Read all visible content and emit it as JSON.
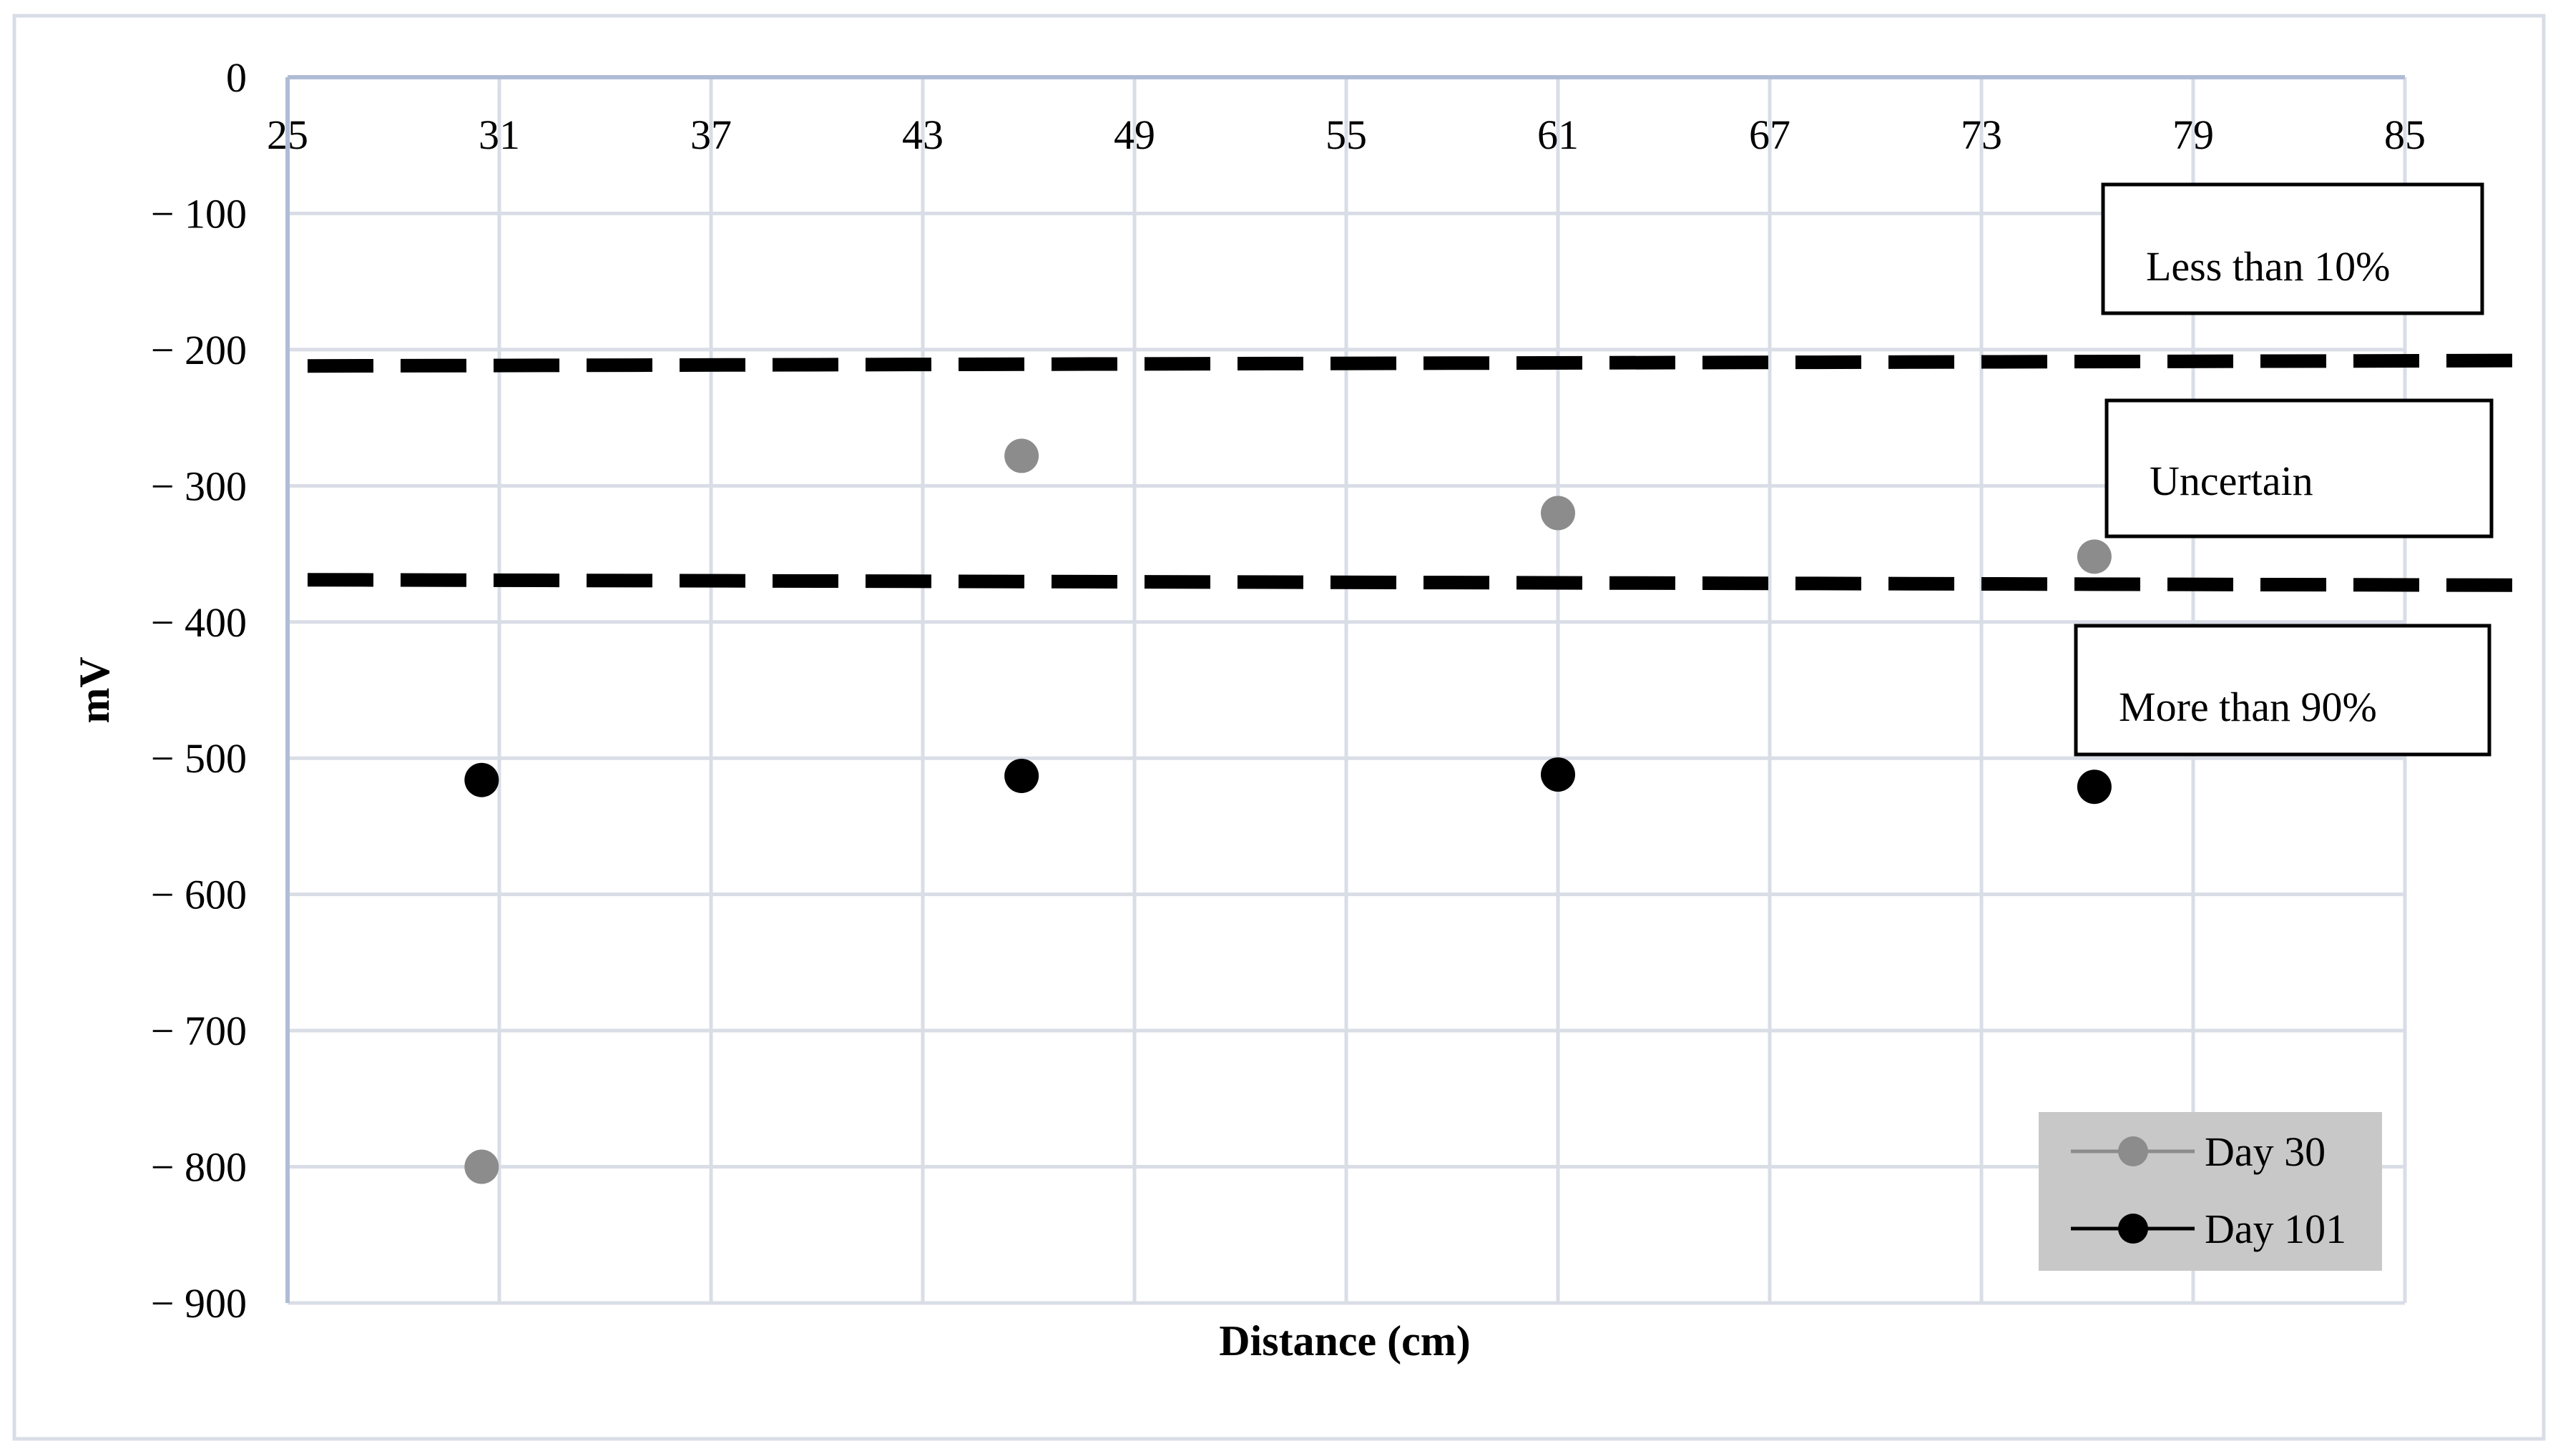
{
  "chart_data": {
    "type": "scatter",
    "title": "",
    "xlabel": "Distance (cm)",
    "ylabel": "mV",
    "xlim": [
      25,
      85
    ],
    "ylim": [
      -900,
      0
    ],
    "x_ticks": [
      25,
      31,
      37,
      43,
      49,
      55,
      61,
      67,
      73,
      79,
      85
    ],
    "y_ticks": [
      0,
      -100,
      -200,
      -300,
      -400,
      -500,
      -600,
      -700,
      -800,
      -900
    ],
    "y_tick_labels": [
      "0",
      "− 100",
      "− 200",
      "− 300",
      "− 400",
      "− 500",
      "− 600",
      "− 700",
      "− 800",
      "− 900"
    ],
    "grid": true,
    "x_axis_position": "top",
    "legend_position": "bottom-right",
    "series": [
      {
        "name": "Day 30",
        "color": "#8c8c8c",
        "x": [
          30.5,
          45.8,
          61.0,
          76.2
        ],
        "y": [
          -800,
          -278,
          -320,
          -352
        ]
      },
      {
        "name": "Day 101",
        "color": "#000000",
        "x": [
          30.5,
          45.8,
          61.0,
          76.2
        ],
        "y": [
          -516,
          -513,
          -512,
          -521
        ]
      }
    ],
    "threshold_lines": [
      {
        "style": "dashed",
        "color": "#000000",
        "y_start": -212,
        "y_end": -208
      },
      {
        "style": "dashed",
        "color": "#000000",
        "y_start": -369,
        "y_end": -373
      }
    ],
    "annotations": [
      {
        "text": "Less than 10%"
      },
      {
        "text": "Uncertain"
      },
      {
        "text": "More than 90%"
      }
    ],
    "legend_background": "#c8c8c8",
    "grid_color": "#d9dde6",
    "axis_color": "#b0bcd6"
  }
}
